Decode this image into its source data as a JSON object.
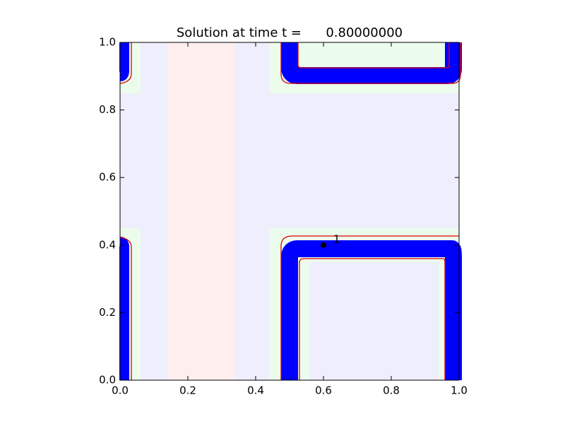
{
  "chart_data": {
    "type": "scatter",
    "title": "Solution at time t =      0.80000000",
    "x": [
      0.6
    ],
    "y": [
      0.4
    ],
    "point_labels": [
      "1"
    ],
    "color": "#000000",
    "xlim": [
      0,
      1
    ],
    "ylim": [
      0,
      1
    ],
    "xticks": [
      {
        "value": 0,
        "label": "0.0"
      },
      0.2,
      0.4,
      0.6,
      0.8,
      {
        "value": 1,
        "label": "1.0"
      }
    ],
    "yticks": [
      {
        "value": 0,
        "label": "0.0"
      },
      0.2,
      0.4,
      0.6,
      0.8,
      {
        "value": 1,
        "label": "1.0"
      }
    ]
  }
}
